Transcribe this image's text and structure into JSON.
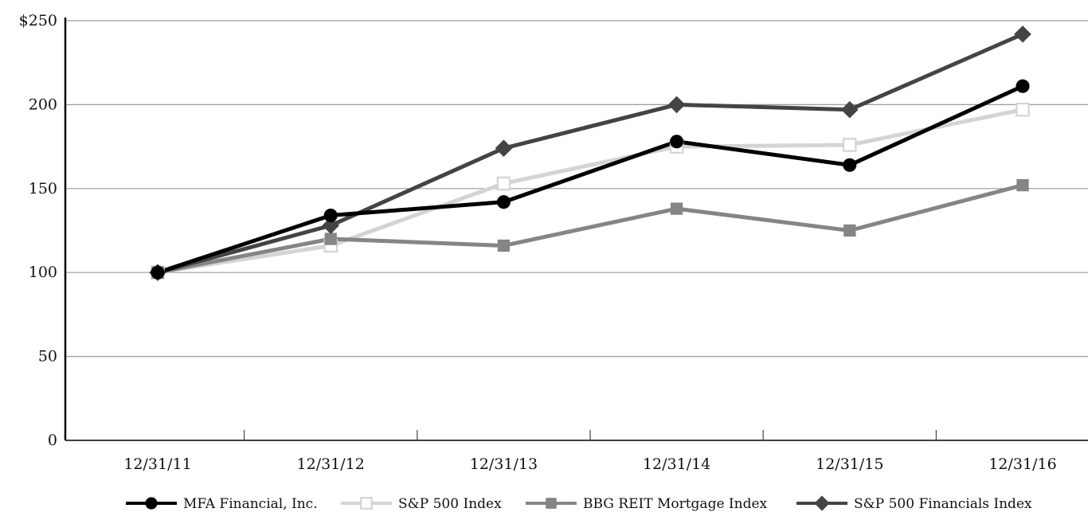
{
  "chart_data": {
    "type": "line",
    "title": "",
    "xlabel": "",
    "ylabel": "",
    "categories": [
      "12/31/11",
      "12/31/12",
      "12/31/13",
      "12/31/14",
      "12/31/15",
      "12/31/16"
    ],
    "ylim": [
      0,
      250
    ],
    "yticks": [
      0,
      50,
      100,
      150,
      200,
      250
    ],
    "ytick_labels": [
      "0",
      "50",
      "100",
      "150",
      "200",
      "$250"
    ],
    "grid": true,
    "legend_position": "bottom",
    "series": [
      {
        "name": "MFA Financial, Inc.",
        "values": [
          100,
          134,
          142,
          178,
          164,
          211
        ],
        "color": "#000000",
        "marker": "circle-filled"
      },
      {
        "name": "S&P 500 Index",
        "values": [
          100,
          116,
          153,
          175,
          176,
          197
        ],
        "color": "#d4d4d4",
        "marker": "square-open"
      },
      {
        "name": "BBG REIT Mortgage Index",
        "values": [
          100,
          120,
          116,
          138,
          125,
          152
        ],
        "color": "#858585",
        "marker": "square-filled"
      },
      {
        "name": "S&P 500 Financials Index",
        "values": [
          100,
          128,
          174,
          200,
          197,
          242
        ],
        "color": "#444444",
        "marker": "diamond-filled"
      }
    ]
  }
}
